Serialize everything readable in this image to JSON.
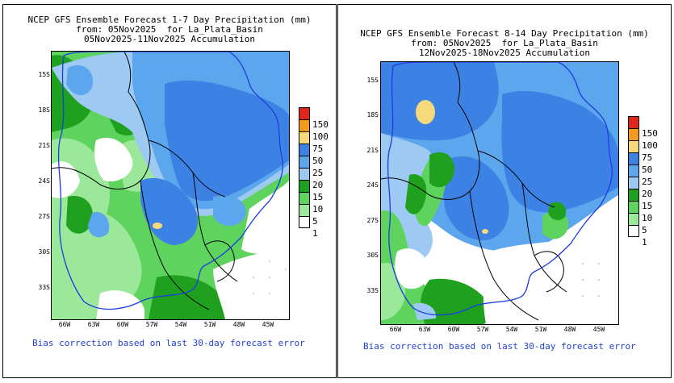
{
  "palette": {
    "white": "#ffffff",
    "c1": "#ffffff",
    "c5": "#9be89b",
    "c10": "#5ed35e",
    "c15": "#1fa11f",
    "c20": "#9dc9f2",
    "c25": "#5ba6ec",
    "c50": "#3c82e5",
    "c75": "#f6d97a",
    "c100": "#f29a1d",
    "c150": "#e0251a",
    "border": "#000000",
    "basin": "#1d3ce0"
  },
  "legend": {
    "labels": [
      "150",
      "100",
      "75",
      "50",
      "25",
      "20",
      "15",
      "10",
      "5",
      "1"
    ],
    "colors": [
      "#e0251a",
      "#f29a1d",
      "#f6d97a",
      "#3c82e5",
      "#5ba6ec",
      "#9dc9f2",
      "#1fa11f",
      "#5ed35e",
      "#9be89b",
      "#ffffff"
    ]
  },
  "axes": {
    "lat_labels": [
      "15S",
      "18S",
      "21S",
      "24S",
      "27S",
      "30S",
      "33S"
    ],
    "lon_labels": [
      "66W",
      "63W",
      "60W",
      "57W",
      "54W",
      "51W",
      "48W",
      "45W"
    ]
  },
  "panels": [
    {
      "title_line1": "NCEP GFS Ensemble Forecast 1-7 Day Precipitation (mm)",
      "title_line2": "from: 05Nov2025  for La_Plata_Basin",
      "title_line3": "05Nov2025-11Nov2025 Accumulation",
      "note": "Bias correction based on last 30-day forecast error"
    },
    {
      "title_line1": "NCEP GFS Ensemble Forecast 8-14 Day Precipitation (mm)",
      "title_line2": "from: 05Nov2025  for La_Plata_Basin",
      "title_line3": "12Nov2025-18Nov2025 Accumulation",
      "note": "Bias correction based on last 30-day forecast error"
    }
  ]
}
